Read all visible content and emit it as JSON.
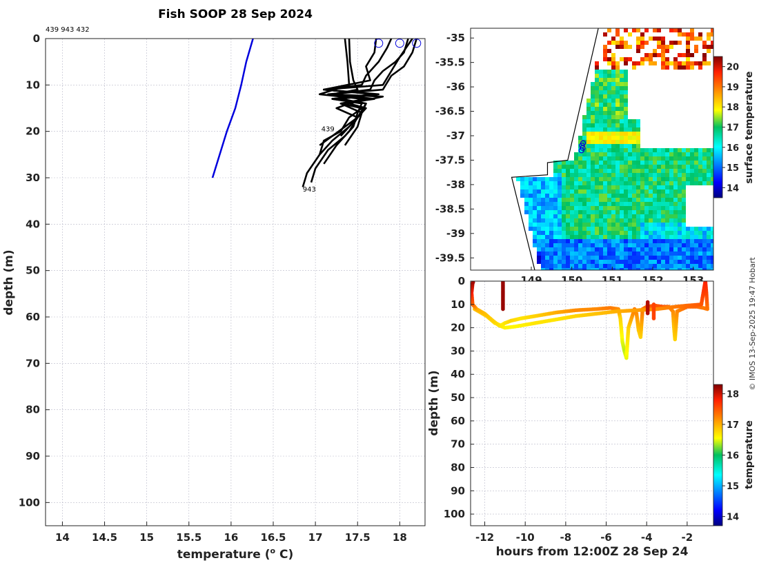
{
  "title": "Fish SOOP 28 Sep 2024",
  "profile_ids": "439 943 432",
  "credit": "© IMOS 13-Sep-2025 19:47 Hobart",
  "chart_data": [
    {
      "type": "line",
      "name": "temperature-depth profiles",
      "xlabel": "temperature (",
      "xlabel_sup": "o",
      "xlabel_tail": " C)",
      "ylabel": "depth (m)",
      "xlim": [
        13.8,
        18.3
      ],
      "ylim": [
        0,
        105
      ],
      "xticks": [
        14,
        14.5,
        15,
        15.5,
        16,
        16.5,
        17,
        17.5,
        18
      ],
      "xtick_labels": [
        "14",
        "14.5",
        "15",
        "15.5",
        "16",
        "16.5",
        "17",
        "17.5",
        "18"
      ],
      "yticks": [
        0,
        10,
        20,
        30,
        40,
        50,
        60,
        70,
        80,
        90,
        100
      ],
      "ytick_labels": [
        "0",
        "10",
        "20",
        "30",
        "40",
        "50",
        "60",
        "70",
        "80",
        "90",
        "100"
      ],
      "climatology": {
        "color": "#0000dd",
        "x": [
          16.26,
          16.18,
          16.12,
          16.05,
          15.95,
          15.78
        ],
        "y": [
          0,
          5,
          10,
          15,
          20,
          30
        ]
      },
      "profiles": [
        {
          "x": [
            17.4,
            17.41,
            17.45,
            17.5,
            17.2,
            17.6,
            17.3,
            17.55,
            17.4,
            17.3,
            17.1,
            17.05,
            16.9,
            16.85
          ],
          "y": [
            0,
            5,
            9,
            11,
            12,
            13,
            14,
            15,
            17,
            20,
            22,
            25,
            29,
            32
          ]
        },
        {
          "x": [
            17.72,
            17.7,
            17.6,
            17.65,
            17.1,
            17.7,
            17.2,
            17.55,
            17.5,
            17.45,
            17.35,
            17.15,
            17.0,
            16.95
          ],
          "y": [
            0,
            3,
            6,
            9,
            11,
            12,
            13,
            14,
            16,
            19,
            21,
            24,
            28,
            31
          ]
        },
        {
          "x": [
            17.9,
            17.85,
            17.75,
            17.6,
            17.55,
            17.1,
            17.7,
            17.2,
            17.6,
            17.5,
            17.4,
            17.25,
            17.1
          ],
          "y": [
            0,
            2,
            5,
            8,
            10,
            11,
            12,
            13,
            14,
            17,
            20,
            23,
            27
          ]
        },
        {
          "x": [
            18.1,
            18.05,
            17.95,
            17.8,
            17.7,
            17.65,
            17.2,
            17.7,
            17.3,
            17.55,
            17.5,
            17.35
          ],
          "y": [
            0,
            3,
            5,
            7,
            9,
            11,
            12,
            13,
            14,
            16,
            19,
            23
          ]
        },
        {
          "x": [
            18.15,
            18.0,
            17.9,
            17.8,
            17.1,
            17.75,
            17.3,
            17.6,
            17.55,
            17.4,
            17.2,
            17.05
          ],
          "y": [
            0,
            4,
            7,
            10,
            11,
            12,
            13,
            14,
            16,
            19,
            22,
            25
          ]
        },
        {
          "x": [
            18.2,
            18.15,
            18.05,
            17.9,
            17.8,
            17.15,
            17.8,
            17.4,
            17.6,
            17.45,
            17.3
          ],
          "y": [
            0,
            3,
            6,
            8,
            11,
            12,
            12.5,
            14,
            15,
            18,
            21
          ]
        },
        {
          "x": [
            17.35,
            17.38,
            17.4,
            17.05,
            17.55,
            17.25,
            17.5,
            17.35,
            17.2,
            17.05
          ],
          "y": [
            0,
            5,
            10,
            12,
            13,
            15,
            17,
            19,
            21,
            23
          ]
        }
      ],
      "start_markers": {
        "color": "#0000dd",
        "x": [
          17.75,
          18.0,
          18.2
        ],
        "y": [
          1,
          1,
          1
        ]
      },
      "annotations": [
        {
          "text": "439",
          "x": 17.07,
          "y": 19.5
        },
        {
          "text": "943",
          "x": 16.85,
          "y": 32.5
        }
      ]
    },
    {
      "type": "heatmap",
      "name": "surface temperature map",
      "colorbar_label": "surface temperature",
      "clim": [
        13.5,
        20.5
      ],
      "cticks": [
        14,
        15,
        16,
        17,
        18,
        19,
        20
      ],
      "ctick_labels": [
        "14",
        "15",
        "16",
        "17",
        "18",
        "19",
        "20"
      ],
      "xlim": [
        147.5,
        153.5
      ],
      "ylim": [
        -39.75,
        -34.8
      ],
      "xtick_labels": [
        "149",
        "150",
        "151",
        "152",
        "153"
      ],
      "yticks": [
        -35,
        -35.5,
        -36,
        -36.5,
        -37,
        -37.5,
        -38,
        -38.5,
        -39,
        -39.5
      ],
      "ytick_labels": [
        "-35",
        "-35.5",
        "-36",
        "-36.5",
        "-37",
        "-37.5",
        "-38",
        "-38.5",
        "-39",
        "-39.5"
      ],
      "vessel_positions": {
        "lon": [
          150.25,
          150.27,
          150.24,
          150.28
        ],
        "lat": [
          -37.2,
          -37.25,
          -37.3,
          -37.15
        ]
      }
    },
    {
      "type": "scatter",
      "name": "depth vs time track",
      "xlabel": "hours from 12:00Z 28 Sep 24",
      "ylabel": "depth (m)",
      "colorbar_label": "temperature",
      "xlim": [
        -12.7,
        -0.7
      ],
      "ylim": [
        0,
        105
      ],
      "xticks": [
        -12,
        -10,
        -8,
        -6,
        -4,
        -2
      ],
      "xtick_labels": [
        "-12",
        "-10",
        "-8",
        "-6",
        "-4",
        "-2"
      ],
      "yticks": [
        0,
        10,
        20,
        30,
        40,
        50,
        60,
        70,
        80,
        90,
        100
      ],
      "ytick_labels": [
        "0",
        "10",
        "20",
        "30",
        "40",
        "50",
        "60",
        "70",
        "80",
        "90",
        "100"
      ],
      "clim": [
        13.7,
        18.3
      ],
      "cticks": [
        14,
        15,
        16,
        17,
        18
      ],
      "ctick_labels": [
        "14",
        "15",
        "16",
        "17",
        "18"
      ],
      "track_t": [
        -12.5,
        -12.3,
        -11.9,
        -11.5,
        -11.2,
        -11.0,
        -10.7,
        -10.2,
        -9.5,
        -8.5,
        -7.5,
        -6.5,
        -5.8,
        -5.4,
        -5.3,
        -5.2,
        -5.1,
        -5.0,
        -4.9,
        -4.6,
        -4.5,
        -4.4,
        -4.3,
        -4.2,
        -4.0,
        -3.6,
        -3.2,
        -2.9,
        -2.7,
        -2.65,
        -2.6,
        -2.5,
        -2.0,
        -1.5,
        -1.2,
        -1.0,
        -1.05,
        -1.1,
        -1.3,
        -2.0,
        -2.6,
        -3.5,
        -4.5,
        -5.5,
        -6.5,
        -7.5,
        -8.5,
        -9.5,
        -10.5,
        -11.0,
        -11.3,
        -11.6,
        -12.0,
        -12.4,
        -12.6,
        -12.65,
        -12.6,
        -12.55
      ],
      "track_d": [
        12,
        13,
        15,
        18,
        19,
        18,
        17,
        16,
        15,
        13.5,
        12.5,
        12,
        11.5,
        12,
        16,
        26,
        30,
        33,
        20,
        12,
        14,
        21,
        24,
        12,
        11,
        10.5,
        11,
        11,
        13,
        20,
        25,
        13,
        11,
        11,
        11.5,
        12,
        5,
        0,
        10,
        10.5,
        11,
        12,
        12.5,
        13,
        14,
        15,
        16.5,
        18,
        19.5,
        20,
        19,
        17,
        14,
        12,
        10,
        5,
        1,
        0
      ],
      "track_temp": [
        16.9,
        16.9,
        16.8,
        16.7,
        16.6,
        16.7,
        16.8,
        16.7,
        16.8,
        17.0,
        17.2,
        17.2,
        17.3,
        17.2,
        16.8,
        16.5,
        16.4,
        16.5,
        16.8,
        17.3,
        17.2,
        16.9,
        16.8,
        17.3,
        17.4,
        17.5,
        17.5,
        17.4,
        17.2,
        16.9,
        16.8,
        17.2,
        17.4,
        17.4,
        17.3,
        17.3,
        17.6,
        17.8,
        17.5,
        17.4,
        17.3,
        17.2,
        17.1,
        17.0,
        16.9,
        16.8,
        16.7,
        16.7,
        16.6,
        16.6,
        16.7,
        16.8,
        16.9,
        17.0,
        17.4,
        17.8,
        18.1,
        18.2
      ],
      "extra_dives": [
        {
          "t": -11.1,
          "top": 0,
          "bottom": 12,
          "temp": 18.2
        },
        {
          "t": -3.95,
          "top": 9,
          "bottom": 14,
          "temp": 18.1
        },
        {
          "t": -3.65,
          "top": 10,
          "bottom": 16,
          "temp": 17.6
        }
      ]
    }
  ]
}
